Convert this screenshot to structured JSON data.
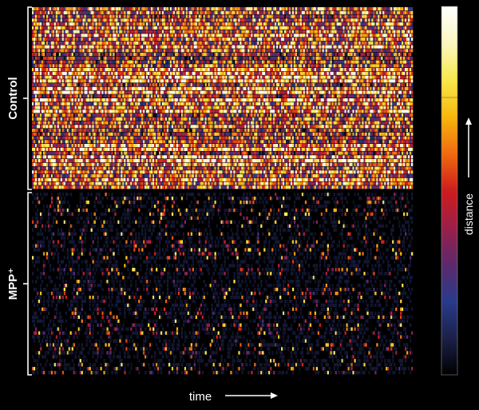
{
  "chart_data": {
    "type": "heatmap",
    "title": "",
    "xlabel": "time",
    "colorbar_label": "distance",
    "colormap": [
      "#000000",
      "#1c2148",
      "#2a3a8c",
      "#5c2a6a",
      "#9a1f4a",
      "#d01c1c",
      "#f06a10",
      "#f7b70c",
      "#f8e84a",
      "#fbf6c0",
      "#ffffff"
    ],
    "groups": [
      {
        "name": "Control",
        "rows": 48,
        "mean_intensity": 0.55
      },
      {
        "name": "MPP⁺",
        "rows": 46,
        "mean_intensity": 0.12
      }
    ],
    "grid": false
  }
}
